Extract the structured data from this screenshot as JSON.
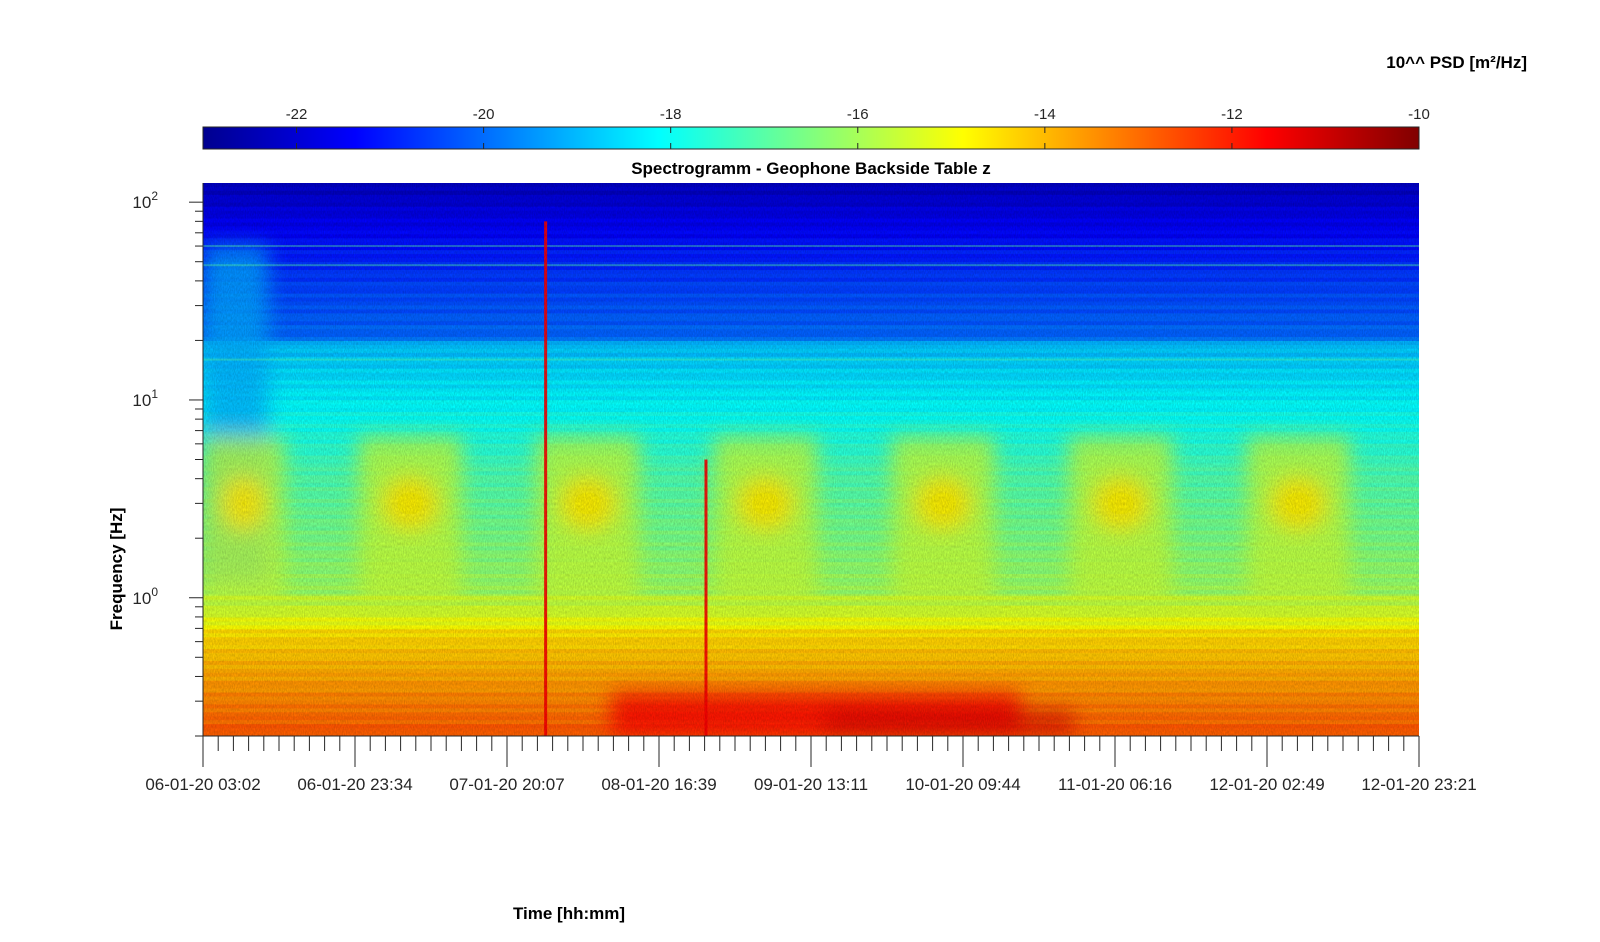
{
  "chart_data": {
    "type": "heatmap",
    "title": "Spectrogramm - Geophone Backside Table z",
    "xlabel": "Time [hh:mm]",
    "ylabel": "Frequency [Hz]",
    "y_scale": "log",
    "ylim": [
      0.2,
      125
    ],
    "y_ticks": [
      {
        "base": "10",
        "exp": "0",
        "value": 1
      },
      {
        "base": "10",
        "exp": "1",
        "value": 10
      },
      {
        "base": "10",
        "exp": "2",
        "value": 100
      }
    ],
    "x_start": "06-01-20 03:02",
    "x_end": "12-01-20 23:21",
    "x_tick_labels": [
      "06-01-20 03:02",
      "06-01-20 23:34",
      "07-01-20 20:07",
      "08-01-20 16:39",
      "09-01-20 13:11",
      "10-01-20 09:44",
      "11-01-20 06:16",
      "12-01-20 02:49",
      "12-01-20 23:21"
    ],
    "colorbar": {
      "label": "10^^ PSD [m²/Hz]",
      "colormap": "jet",
      "range": [
        -23,
        -10
      ],
      "ticks": [
        "-22",
        "-20",
        "-18",
        "-16",
        "-14",
        "-12",
        "-10"
      ],
      "tick_values": [
        -22,
        -20,
        -18,
        -16,
        -14,
        -12,
        -10
      ],
      "placement": "top"
    },
    "grid": false,
    "features": {
      "dominant_low_frequency_band_hz": [
        0.2,
        0.7
      ],
      "daily_activity_band_hz": [
        2,
        5
      ],
      "persistent_line_hz": 1.0,
      "transient_spikes_time": [
        "08-01-20 01:20",
        "08-01-20 23:00"
      ]
    }
  }
}
